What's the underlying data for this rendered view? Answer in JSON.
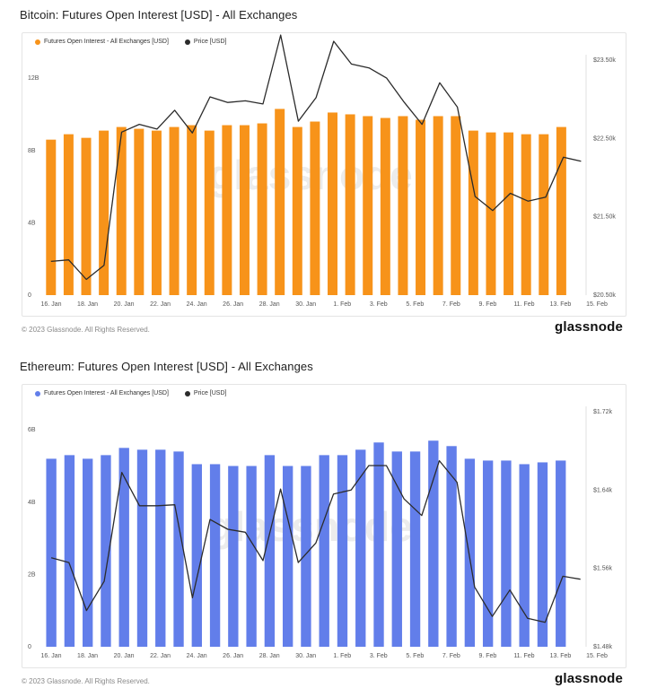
{
  "charts": [
    {
      "id": "btc",
      "title": "Bitcoin: Futures Open Interest [USD] - All Exchanges",
      "legend": {
        "bars": "Futures Open Interest - All Exchanges [USD]",
        "line": "Price [USD]"
      },
      "copyright": "© 2023 Glassnode. All Rights Reserved.",
      "brand": "glassnode",
      "watermark": "glassnode",
      "bar_color": "#f7931a",
      "line_color": "#2b2b2b"
    },
    {
      "id": "eth",
      "title": "Ethereum: Futures Open Interest [USD] - All Exchanges",
      "legend": {
        "bars": "Futures Open Interest - All Exchanges [USD]",
        "line": "Price [USD]"
      },
      "copyright": "© 2023 Glassnode. All Rights Reserved.",
      "brand": "glassnode",
      "watermark": "glassnode",
      "bar_color": "#627eea",
      "line_color": "#2b2b2b"
    }
  ],
  "chart_data": [
    {
      "type": "bar",
      "title": "Bitcoin: Futures Open Interest [USD] - All Exchanges",
      "x_tick_labels": [
        "16. Jan",
        "18. Jan",
        "20. Jan",
        "22. Jan",
        "24. Jan",
        "26. Jan",
        "28. Jan",
        "30. Jan",
        "1. Feb",
        "3. Feb",
        "5. Feb",
        "7. Feb",
        "9. Feb",
        "11. Feb",
        "13. Feb",
        "15. Feb"
      ],
      "y_left_ticks": [
        "0",
        "4B",
        "8B",
        "12B"
      ],
      "y_left_lim": [
        0,
        13
      ],
      "y_right_ticks": [
        "$20.50k",
        "$21.50k",
        "$22.50k",
        "$23.50k"
      ],
      "y_right_lim": [
        20.5,
        23.5
      ],
      "series": [
        {
          "name": "Futures Open Interest - All Exchanges [USD]",
          "kind": "bar",
          "values": [
            8.6,
            8.9,
            8.7,
            9.1,
            9.3,
            9.2,
            9.1,
            9.3,
            9.4,
            9.1,
            9.4,
            9.4,
            9.5,
            10.3,
            9.3,
            9.6,
            10.1,
            10.0,
            9.9,
            9.8,
            9.9,
            9.7,
            9.9,
            9.9,
            9.1,
            9.0,
            9.0,
            8.9,
            8.9,
            9.3
          ]
        },
        {
          "name": "Price [USD]",
          "kind": "line",
          "axis": "right",
          "values": [
            20.93,
            20.95,
            20.7,
            20.88,
            22.58,
            22.68,
            22.62,
            22.86,
            22.57,
            23.03,
            22.96,
            22.98,
            22.94,
            23.82,
            22.72,
            23.02,
            23.74,
            23.45,
            23.4,
            23.27,
            22.96,
            22.68,
            23.21,
            22.9,
            21.76,
            21.58,
            21.8,
            21.7,
            21.75,
            22.26,
            22.21
          ]
        }
      ],
      "grid": false,
      "legend_position": "top-left"
    },
    {
      "type": "bar",
      "title": "Ethereum: Futures Open Interest [USD] - All Exchanges",
      "x_tick_labels": [
        "16. Jan",
        "18. Jan",
        "20. Jan",
        "22. Jan",
        "24. Jan",
        "26. Jan",
        "28. Jan",
        "30. Jan",
        "1. Feb",
        "3. Feb",
        "5. Feb",
        "7. Feb",
        "9. Feb",
        "11. Feb",
        "13. Feb",
        "15. Feb"
      ],
      "y_left_ticks": [
        "0",
        "2B",
        "4B",
        "6B"
      ],
      "y_left_lim": [
        0,
        6.5
      ],
      "y_right_ticks": [
        "$1.48k",
        "$1.56k",
        "$1.64k",
        "$1.72k"
      ],
      "y_right_lim": [
        1.48,
        1.72
      ],
      "series": [
        {
          "name": "Futures Open Interest - All Exchanges [USD]",
          "kind": "bar",
          "values": [
            5.2,
            5.3,
            5.2,
            5.3,
            5.5,
            5.45,
            5.45,
            5.4,
            5.05,
            5.05,
            5.0,
            5.0,
            5.3,
            5.0,
            5.0,
            5.3,
            5.3,
            5.45,
            5.65,
            5.4,
            5.4,
            5.7,
            5.55,
            5.2,
            5.15,
            5.15,
            5.05,
            5.1,
            5.15
          ]
        },
        {
          "name": "Price [USD]",
          "kind": "line",
          "axis": "right",
          "values": [
            1.571,
            1.566,
            1.517,
            1.547,
            1.658,
            1.624,
            1.624,
            1.625,
            1.53,
            1.61,
            1.6,
            1.597,
            1.568,
            1.641,
            1.566,
            1.586,
            1.636,
            1.64,
            1.665,
            1.665,
            1.631,
            1.614,
            1.67,
            1.648,
            1.541,
            1.511,
            1.538,
            1.509,
            1.505,
            1.552,
            1.549
          ]
        }
      ],
      "grid": false,
      "legend_position": "top-left"
    }
  ]
}
